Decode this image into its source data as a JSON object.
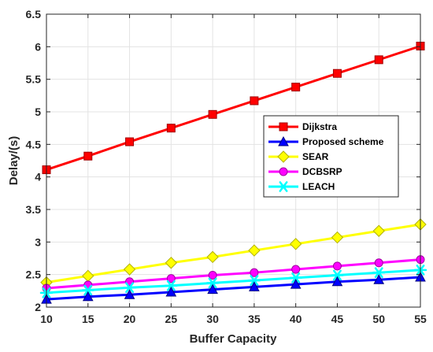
{
  "chart_data": {
    "type": "line",
    "title": "",
    "xlabel": "Buffer Capacity",
    "ylabel": "Delay/(s)",
    "x": [
      10,
      15,
      20,
      25,
      30,
      35,
      40,
      45,
      50,
      55
    ],
    "xticks": [
      "10",
      "15",
      "20",
      "25",
      "30",
      "35",
      "40",
      "45",
      "50",
      "55"
    ],
    "yticks": [
      "2",
      "2.5",
      "3",
      "3.5",
      "4",
      "4.5",
      "5",
      "5.5",
      "6",
      "6.5"
    ],
    "xlim": [
      10,
      55
    ],
    "ylim": [
      2,
      6.5
    ],
    "grid": true,
    "legend_position": "center-right",
    "series": [
      {
        "name": "Dijkstra",
        "color": "#ff0000",
        "marker": "square",
        "values": [
          4.11,
          4.32,
          4.54,
          4.75,
          4.96,
          5.17,
          5.38,
          5.59,
          5.8,
          6.01
        ]
      },
      {
        "name": "Proposed scheme",
        "color": "#0000ff",
        "marker": "triangle",
        "values": [
          2.12,
          2.16,
          2.19,
          2.23,
          2.27,
          2.31,
          2.35,
          2.39,
          2.42,
          2.46
        ]
      },
      {
        "name": "SEAR",
        "color": "#ffff00",
        "marker": "diamond",
        "values": [
          2.38,
          2.48,
          2.58,
          2.68,
          2.77,
          2.87,
          2.97,
          3.07,
          3.17,
          3.27
        ]
      },
      {
        "name": "DCBSRP",
        "color": "#ff00ff",
        "marker": "circle",
        "values": [
          2.29,
          2.34,
          2.39,
          2.44,
          2.49,
          2.53,
          2.58,
          2.63,
          2.68,
          2.73
        ]
      },
      {
        "name": "LEACH",
        "color": "#00ffff",
        "marker": "asterisk",
        "values": [
          2.22,
          2.26,
          2.3,
          2.33,
          2.37,
          2.41,
          2.45,
          2.49,
          2.53,
          2.57
        ]
      }
    ]
  }
}
